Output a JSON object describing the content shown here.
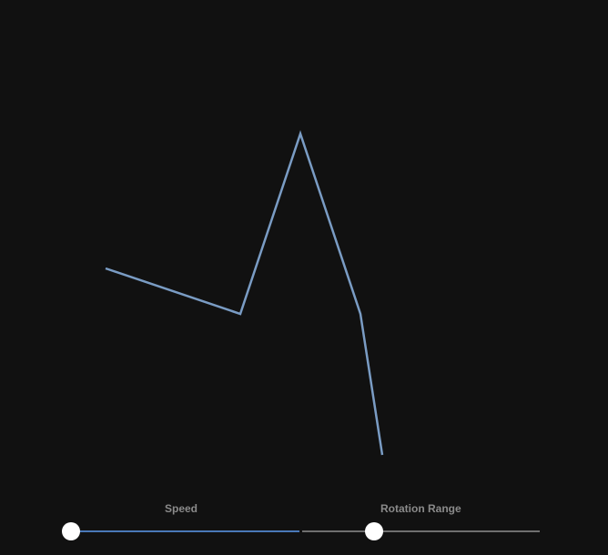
{
  "controls": {
    "speed": {
      "label": "Speed",
      "value": 0.0
    },
    "rotation_range": {
      "label": "Rotation Range",
      "value": 0.3
    }
  },
  "colors": {
    "background": "#111111",
    "line": "#7a9cc4",
    "track": "#6f6f6f",
    "fill": "#4a78b8",
    "thumb": "#ffffff",
    "label": "#8a8a8a"
  }
}
